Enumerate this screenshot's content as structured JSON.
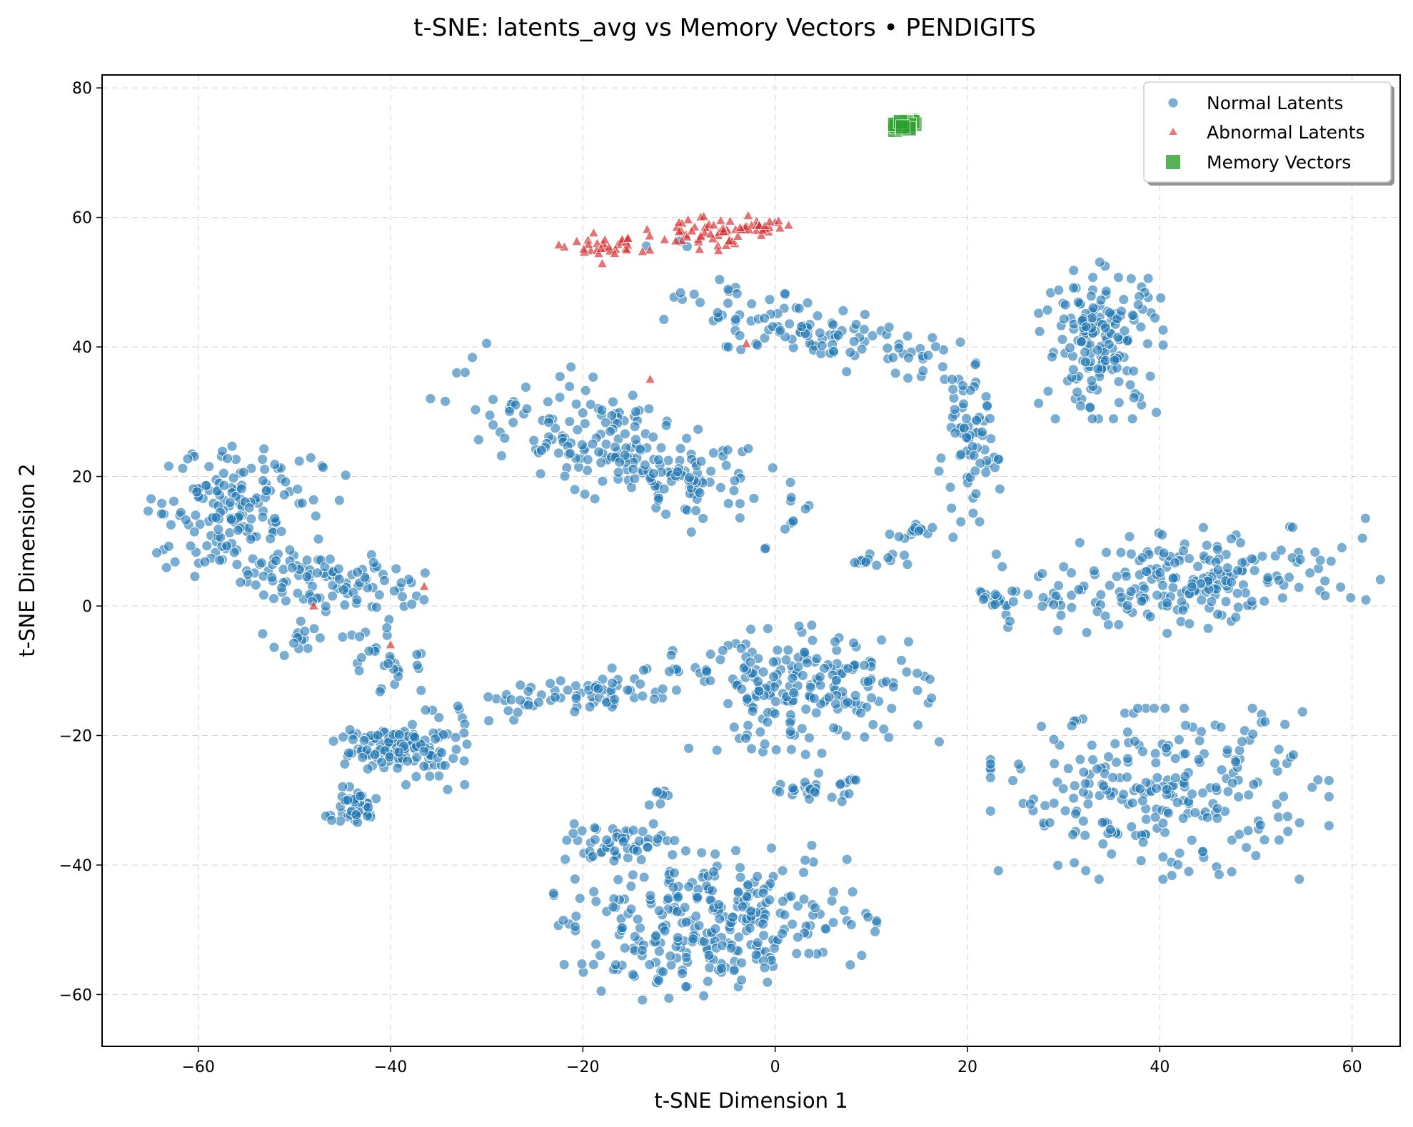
{
  "chart_data": {
    "type": "scatter",
    "title": "t-SNE: latents_avg vs Memory Vectors • PENDIGITS",
    "xlabel": "t-SNE Dimension 1",
    "ylabel": "t-SNE Dimension 2",
    "xlim": [
      -70,
      65
    ],
    "ylim": [
      -68,
      82
    ],
    "xticks": [
      -60,
      -40,
      -20,
      0,
      20,
      40,
      60
    ],
    "yticks": [
      -60,
      -40,
      -20,
      0,
      20,
      40,
      60,
      80
    ],
    "xtick_labels": [
      "−60",
      "−40",
      "−20",
      "0",
      "20",
      "40",
      "60"
    ],
    "ytick_labels": [
      "−60",
      "−40",
      "−20",
      "0",
      "20",
      "40",
      "60",
      "80"
    ],
    "grid": true,
    "legend_position": "top-right",
    "series": [
      {
        "name": "Normal Latents",
        "marker": "circle",
        "color": "#1f77b4",
        "clusters": [
          {
            "cx": -56,
            "cy": 14,
            "sx": 4.2,
            "sy": 5.0,
            "n": 170,
            "rot": -0.35
          },
          {
            "cx": -46,
            "cy": 4,
            "sx": 4.5,
            "sy": 2.5,
            "n": 90,
            "rot": -0.2
          },
          {
            "cx": -16,
            "cy": 24,
            "sx": 9.5,
            "sy": 3.5,
            "n": 230,
            "rot": -0.6
          },
          {
            "cx": 5,
            "cy": 42,
            "sx": 7.5,
            "sy": 2.2,
            "n": 120,
            "rot": -0.3
          },
          {
            "cx": 20,
            "cy": 24,
            "sx": 1.6,
            "sy": 5.0,
            "n": 70,
            "rot": 0
          },
          {
            "cx": 34,
            "cy": 41,
            "sx": 3.0,
            "sy": 5.5,
            "n": 170,
            "rot": 0
          },
          {
            "cx": 43,
            "cy": 4,
            "sx": 9.0,
            "sy": 3.5,
            "n": 220,
            "rot": 0.18
          },
          {
            "cx": 40,
            "cy": -29,
            "sx": 8.0,
            "sy": 6.0,
            "n": 250,
            "rot": 0
          },
          {
            "cx": 3,
            "cy": -13,
            "sx": 6.0,
            "sy": 4.5,
            "n": 210,
            "rot": 0.1
          },
          {
            "cx": -6,
            "cy": -49,
            "sx": 7.5,
            "sy": 5.0,
            "n": 300,
            "rot": 0.1
          },
          {
            "cx": -17,
            "cy": -36.5,
            "sx": 3.5,
            "sy": 1.3,
            "n": 55,
            "rot": 0
          },
          {
            "cx": -20,
            "cy": -13,
            "sx": 6.0,
            "sy": 1.6,
            "n": 80,
            "rot": 0.25
          },
          {
            "cx": -42,
            "cy": -22,
            "sx": 2.0,
            "sy": 1.8,
            "n": 60,
            "rot": 0
          },
          {
            "cx": -44,
            "cy": -31,
            "sx": 1.5,
            "sy": 1.4,
            "n": 45,
            "rot": 0
          },
          {
            "cx": -36,
            "cy": -22,
            "sx": 2.0,
            "sy": 3.0,
            "n": 70,
            "rot": 0.4
          },
          {
            "cx": -40,
            "cy": -9,
            "sx": 1.6,
            "sy": 2.5,
            "n": 30,
            "rot": 0.3
          },
          {
            "cx": 4,
            "cy": -28,
            "sx": 2.0,
            "sy": 1.0,
            "n": 30,
            "rot": 0
          },
          {
            "cx": 10,
            "cy": 7,
            "sx": 1.8,
            "sy": 0.5,
            "n": 15,
            "rot": 0
          },
          {
            "cx": 15,
            "cy": 11.5,
            "sx": 1.8,
            "sy": 0.5,
            "n": 15,
            "rot": 0
          },
          {
            "cx": 23,
            "cy": 1.5,
            "sx": 1.2,
            "sy": 1.0,
            "n": 15,
            "rot": 0
          },
          {
            "cx": -50,
            "cy": -5,
            "sx": 1.5,
            "sy": 1.2,
            "n": 15,
            "rot": 0
          },
          {
            "cx": -12,
            "cy": -30,
            "sx": 0.5,
            "sy": 1.5,
            "n": 8,
            "rot": 0
          },
          {
            "cx": -9,
            "cy": 55,
            "sx": 2.0,
            "sy": 1.5,
            "n": 3,
            "rot": 0
          }
        ]
      },
      {
        "name": "Abnormal Latents",
        "marker": "triangle",
        "color": "#d62728",
        "clusters": [
          {
            "cx": -17,
            "cy": 55.5,
            "sx": 2.5,
            "sy": 1.2,
            "n": 35,
            "rot": 0
          },
          {
            "cx": -8,
            "cy": 57.5,
            "sx": 2.5,
            "sy": 1.2,
            "n": 40,
            "rot": 0
          },
          {
            "cx": -2,
            "cy": 58.5,
            "sx": 2.0,
            "sy": 0.8,
            "n": 30,
            "rot": 0
          }
        ],
        "points": [
          [
            -48,
            0
          ],
          [
            -40,
            -6
          ],
          [
            -36.5,
            3
          ],
          [
            -13,
            35
          ],
          [
            -3,
            40.5
          ]
        ]
      },
      {
        "name": "Memory Vectors",
        "marker": "square",
        "color": "#2ca02c",
        "clusters": [
          {
            "cx": 13.3,
            "cy": 74.2,
            "sx": 0.55,
            "sy": 0.45,
            "n": 30,
            "rot": 0
          }
        ]
      }
    ]
  }
}
